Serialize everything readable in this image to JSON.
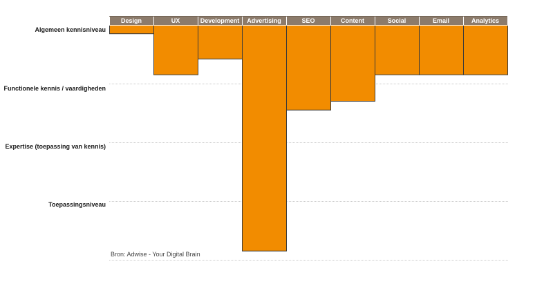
{
  "chart_data": {
    "type": "bar",
    "orientation": "downward",
    "categories": [
      "Design",
      "UX",
      "Development",
      "Advertising",
      "SEO",
      "Content",
      "Social",
      "Email",
      "Analytics"
    ],
    "values": [
      0.15,
      0.85,
      0.58,
      3.85,
      1.45,
      1.3,
      0.85,
      0.85,
      0.85
    ],
    "levels": [
      "Algemeen kennisniveau",
      "Functionele kennis / vaardigheden",
      "Expertise (toepassing van kennis)",
      "Toepassingsniveau"
    ],
    "ylim": [
      0,
      4
    ],
    "grid": true,
    "source": "Bron: Adwise - Your Digital Brain",
    "colors": {
      "bar": "#f28c00",
      "bar_edge": "#3a3a3a",
      "header": "#8c7b6b",
      "grid": "#c8c8c8"
    }
  }
}
